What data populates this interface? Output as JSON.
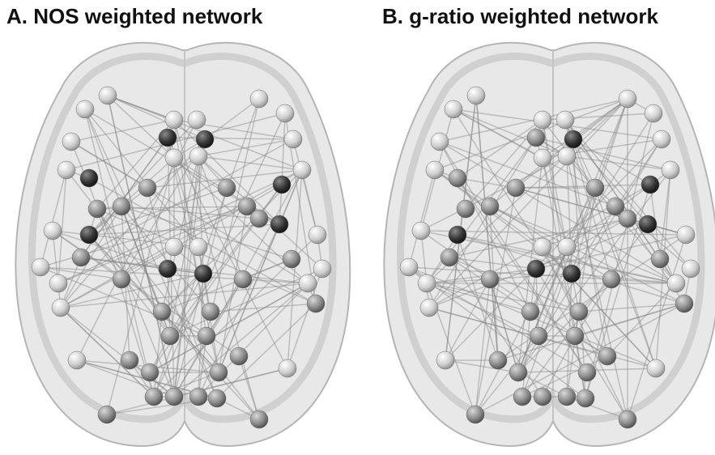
{
  "panels": [
    {
      "title": "A. NOS weighted network"
    },
    {
      "title": "B. g-ratio weighted network"
    }
  ]
}
